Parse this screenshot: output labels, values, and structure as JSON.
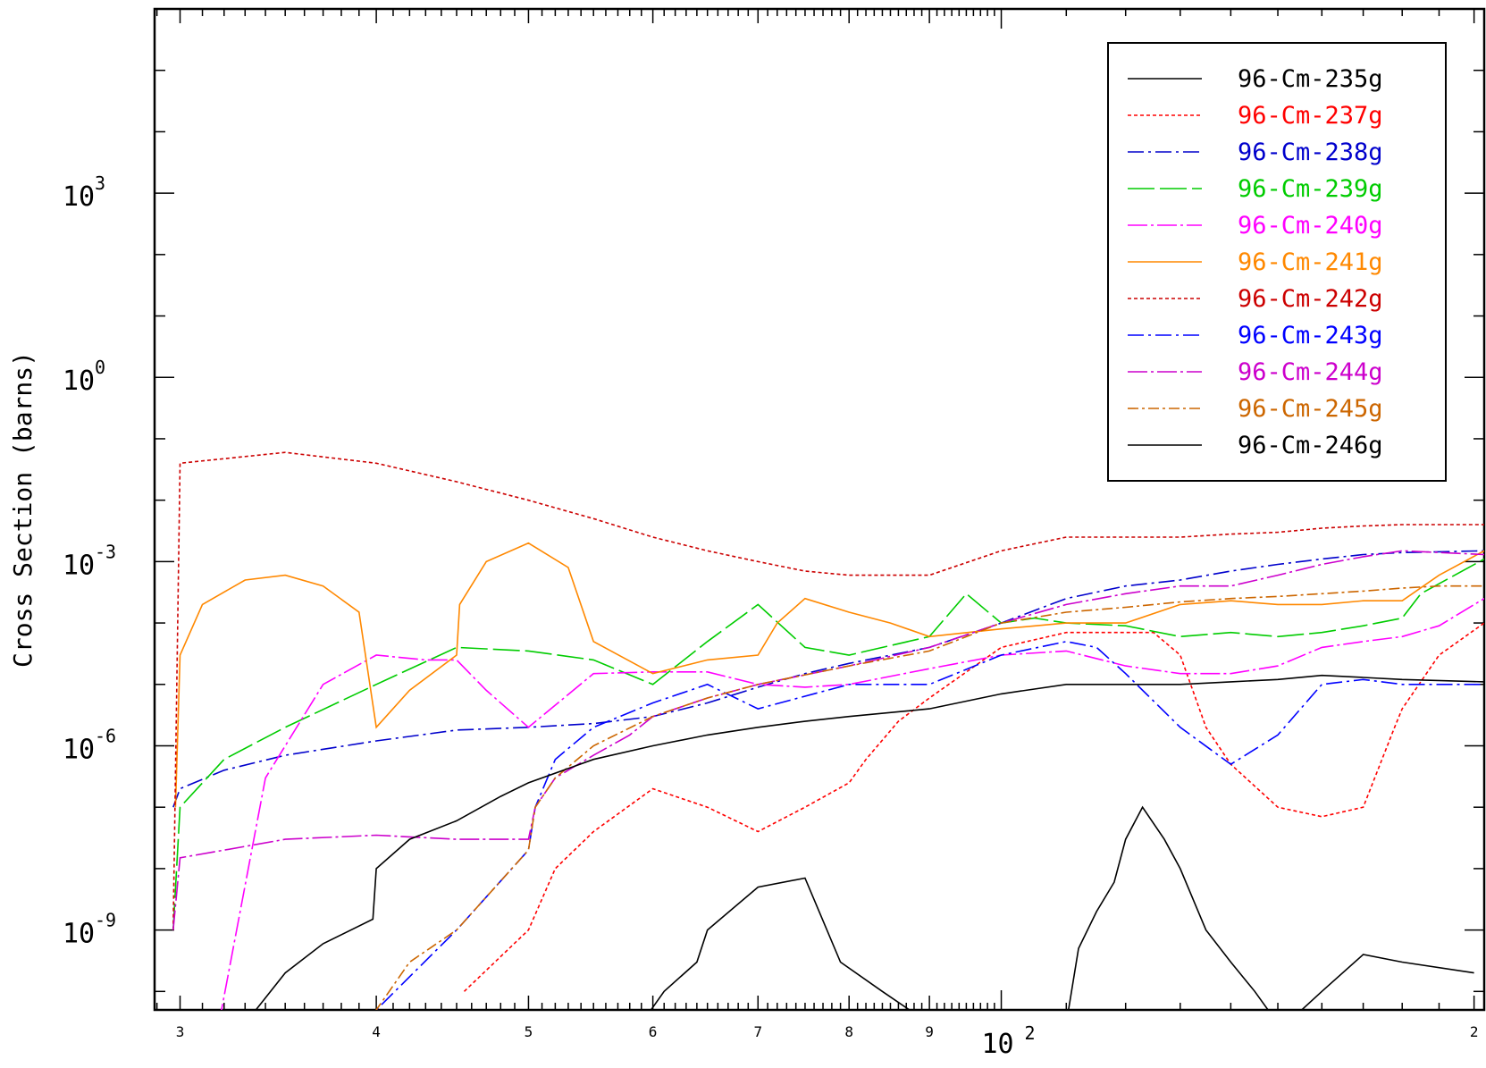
{
  "chart_data": {
    "type": "line",
    "title": "",
    "xlabel": "",
    "ylabel": "Cross Section (barns)",
    "x_scale": "log",
    "y_scale": "log",
    "xlim": [
      28.9,
      203
    ],
    "ylim": [
      5e-11,
      1000000.0
    ],
    "x_tick_labels": [
      {
        "value": 30,
        "label": "3"
      },
      {
        "value": 40,
        "label": "4"
      },
      {
        "value": 50,
        "label": "5"
      },
      {
        "value": 60,
        "label": "6"
      },
      {
        "value": 70,
        "label": "7"
      },
      {
        "value": 80,
        "label": "8"
      },
      {
        "value": 90,
        "label": "9"
      },
      {
        "value": 100,
        "label": "10",
        "exponent": "2"
      },
      {
        "value": 200,
        "label": "2"
      }
    ],
    "y_tick_labels": [
      {
        "value": 1000.0,
        "label": "10",
        "exponent": "3"
      },
      {
        "value": 1.0,
        "label": "10",
        "exponent": "0"
      },
      {
        "value": 0.001,
        "label": "10",
        "exponent": "-3"
      },
      {
        "value": 1e-06,
        "label": "10",
        "exponent": "-6"
      },
      {
        "value": 1e-09,
        "label": "10",
        "exponent": "-9"
      }
    ],
    "legend_position": "top-right",
    "grid": false,
    "series": [
      {
        "name": "96-Cm-235g",
        "color": "#000000",
        "dash": "solid",
        "x": [
          59,
          61,
          64,
          65,
          70,
          75,
          79,
          84,
          90
        ],
        "y": [
          3e-11,
          1e-10,
          3e-10,
          1e-09,
          5e-09,
          7e-09,
          3e-10,
          1e-10,
          3e-11
        ]
      },
      {
        "name": "96-Cm-237g",
        "color": "#ff0000",
        "dash": "4,3",
        "x": [
          45.5,
          50,
          52,
          55,
          60,
          65,
          70,
          75,
          80,
          82,
          86,
          90,
          100,
          110,
          125,
          130,
          135,
          140,
          150,
          160,
          170,
          178,
          180,
          190,
          203
        ],
        "y": [
          1e-10,
          1e-09,
          1e-08,
          4e-08,
          2e-07,
          1e-07,
          4e-08,
          1e-07,
          2.5e-07,
          6e-07,
          2.5e-06,
          6e-06,
          4e-05,
          7e-05,
          7e-05,
          3e-05,
          2e-06,
          5e-07,
          1e-07,
          7e-08,
          1e-07,
          2e-06,
          4e-06,
          3e-05,
          0.0001
        ]
      },
      {
        "name": "96-Cm-238g",
        "color": "#0000cc",
        "dash": "18,5,3,5",
        "x": [
          29.7,
          30,
          32,
          35,
          40,
          45,
          50,
          55,
          60,
          65,
          70,
          75,
          80,
          90,
          100,
          110,
          120,
          130,
          140,
          150,
          160,
          170,
          180,
          203
        ],
        "y": [
          1e-07,
          2e-07,
          4e-07,
          7e-07,
          1.2e-06,
          1.8e-06,
          2e-06,
          2.3e-06,
          3e-06,
          5e-06,
          9e-06,
          1.5e-05,
          2.2e-05,
          4e-05,
          0.0001,
          0.00025,
          0.0004,
          0.0005,
          0.0007,
          0.0009,
          0.0011,
          0.0013,
          0.0014,
          0.0015
        ]
      },
      {
        "name": "96-Cm-239g",
        "color": "#00cc00",
        "dash": "30,6",
        "x": [
          29.7,
          30,
          32,
          35,
          40,
          45,
          50,
          55,
          60,
          65,
          70,
          75,
          80,
          90,
          95,
          100,
          105,
          110,
          120,
          130,
          140,
          150,
          160,
          170,
          180,
          185,
          203
        ],
        "y": [
          1e-09,
          1e-07,
          6e-07,
          2e-06,
          1e-05,
          4e-05,
          3.5e-05,
          2.5e-05,
          1e-05,
          5e-05,
          0.0002,
          4e-05,
          3e-05,
          6e-05,
          0.0003,
          0.0001,
          0.00012,
          0.0001,
          9e-05,
          6e-05,
          7e-05,
          6e-05,
          7e-05,
          9e-05,
          0.00012,
          0.0003,
          0.0011
        ]
      },
      {
        "name": "96-Cm-240g",
        "color": "#ff00ff",
        "dash": "22,4,3,4",
        "x": [
          30.2,
          31.5,
          34,
          37,
          40,
          43,
          45,
          47,
          50,
          55,
          60,
          65,
          70,
          75,
          80,
          90,
          100,
          110,
          120,
          130,
          140,
          150,
          160,
          170,
          180,
          190,
          203
        ],
        "y": [
          1e-11,
          1e-11,
          3e-07,
          1e-05,
          3e-05,
          2.5e-05,
          2.5e-05,
          8e-06,
          2e-06,
          1.5e-05,
          1.6e-05,
          1.6e-05,
          1e-05,
          9e-06,
          1e-05,
          1.8e-05,
          3e-05,
          3.5e-05,
          2e-05,
          1.5e-05,
          1.5e-05,
          2e-05,
          4e-05,
          5e-05,
          6e-05,
          9e-05,
          0.00025
        ]
      },
      {
        "name": "96-Cm-241g",
        "color": "#ff8800",
        "dash": "solid",
        "x": [
          29.8,
          30,
          31,
          33,
          35,
          37,
          39,
          40,
          42,
          45,
          45.2,
          47,
          50,
          53,
          55,
          60,
          65,
          70,
          72,
          75,
          80,
          85,
          90,
          100,
          110,
          120,
          130,
          140,
          150,
          160,
          170,
          180,
          190,
          203
        ],
        "y": [
          1e-07,
          3e-05,
          0.0002,
          0.0005,
          0.0006,
          0.0004,
          0.00015,
          2e-06,
          8e-06,
          3e-05,
          0.0002,
          0.001,
          0.002,
          0.0008,
          5e-05,
          1.5e-05,
          2.5e-05,
          3e-05,
          0.0001,
          0.00025,
          0.00015,
          0.0001,
          6e-05,
          8e-05,
          0.0001,
          0.0001,
          0.0002,
          0.00023,
          0.0002,
          0.0002,
          0.00023,
          0.00023,
          0.0006,
          0.0015
        ]
      },
      {
        "name": "96-Cm-242g",
        "color": "#cc0000",
        "dash": "4,3",
        "x": [
          29.7,
          30,
          35,
          40,
          45,
          50,
          55,
          60,
          65,
          70,
          75,
          80,
          90,
          100,
          110,
          120,
          130,
          140,
          150,
          160,
          170,
          180,
          190,
          203
        ],
        "y": [
          1e-09,
          0.04,
          0.06,
          0.04,
          0.02,
          0.01,
          0.005,
          0.0025,
          0.0015,
          0.001,
          0.0007,
          0.0006,
          0.0006,
          0.0015,
          0.0025,
          0.0025,
          0.0025,
          0.0028,
          0.003,
          0.0035,
          0.0038,
          0.004,
          0.004,
          0.004
        ]
      },
      {
        "name": "96-Cm-243g",
        "color": "#0000ff",
        "dash": "18,5,3,5",
        "x": [
          38.8,
          39.5,
          40,
          45,
          50,
          50.5,
          52,
          55,
          60,
          65,
          70,
          80,
          90,
          100,
          110,
          115,
          120,
          130,
          140,
          150,
          160,
          170,
          180,
          190,
          203
        ],
        "y": [
          1e-11,
          2e-11,
          5e-11,
          1e-09,
          2e-08,
          1e-07,
          6e-07,
          2e-06,
          5e-06,
          1e-05,
          4e-06,
          1e-05,
          1e-05,
          3e-05,
          5e-05,
          4e-05,
          1.5e-05,
          2e-06,
          5e-07,
          1.5e-06,
          1e-05,
          1.2e-05,
          1e-05,
          1e-05,
          1e-05
        ]
      },
      {
        "name": "96-Cm-244g",
        "color": "#cc00cc",
        "dash": "22,4,3,4",
        "x": [
          29.7,
          30,
          32,
          35,
          40,
          45,
          50,
          50.5,
          52,
          55,
          58,
          60,
          65,
          70,
          80,
          90,
          100,
          110,
          120,
          130,
          140,
          150,
          160,
          170,
          180,
          203
        ],
        "y": [
          1e-09,
          1.5e-08,
          2e-08,
          3e-08,
          3.5e-08,
          3e-08,
          3e-08,
          1e-07,
          3e-07,
          7e-07,
          1.5e-06,
          3e-06,
          6e-06,
          1e-05,
          2e-05,
          4e-05,
          0.0001,
          0.0002,
          0.0003,
          0.0004,
          0.0004,
          0.0006,
          0.0009,
          0.0012,
          0.0015,
          0.0013
        ]
      },
      {
        "name": "96-Cm-245g",
        "color": "#cc6600",
        "dash": "12,4,3,4",
        "x": [
          39.5,
          40,
          42,
          45,
          50,
          50.5,
          52,
          55,
          60,
          65,
          70,
          80,
          90,
          100,
          110,
          120,
          130,
          140,
          150,
          160,
          170,
          180,
          190,
          203
        ],
        "y": [
          1e-11,
          5e-11,
          3e-10,
          1e-09,
          2e-08,
          1e-07,
          3e-07,
          1e-06,
          3e-06,
          6e-06,
          1e-05,
          2e-05,
          3.5e-05,
          0.0001,
          0.00015,
          0.00018,
          0.00022,
          0.00025,
          0.00027,
          0.0003,
          0.00033,
          0.00037,
          0.0004,
          0.0004
        ]
      },
      {
        "name": "96-Cm-246g",
        "color": "#000000",
        "dash": "solid",
        "x": [
          32.5,
          33,
          35,
          37,
          39.8,
          40,
          42,
          45,
          48,
          50,
          55,
          60,
          65,
          70,
          75,
          80,
          90,
          100,
          110,
          120,
          130,
          140,
          150,
          160,
          170,
          180,
          203
        ],
        "y": [
          1e-11,
          3e-11,
          2e-10,
          6e-10,
          1.5e-09,
          1e-08,
          3e-08,
          6e-08,
          1.5e-07,
          2.5e-07,
          6e-07,
          1e-06,
          1.5e-06,
          2e-06,
          2.5e-06,
          3e-06,
          4e-06,
          7e-06,
          1e-05,
          1e-05,
          1e-05,
          1.1e-05,
          1.2e-05,
          1.4e-05,
          1.3e-05,
          1.2e-05,
          1.1e-05
        ]
      },
      {
        "name": "",
        "color": "#000000",
        "dash": "solid",
        "x": [
          110,
          112,
          115,
          118,
          120,
          123,
          127,
          130,
          135,
          140,
          145,
          150
        ],
        "y": [
          3e-11,
          5e-10,
          2e-09,
          6e-09,
          3e-08,
          1e-07,
          3e-08,
          1e-08,
          1e-09,
          3e-10,
          1e-10,
          3e-11
        ]
      },
      {
        "name": "",
        "color": "#000000",
        "dash": "solid",
        "x": [
          152,
          160,
          170,
          180,
          200
        ],
        "y": [
          3e-11,
          1e-10,
          4e-10,
          3e-10,
          2e-10
        ]
      }
    ]
  }
}
